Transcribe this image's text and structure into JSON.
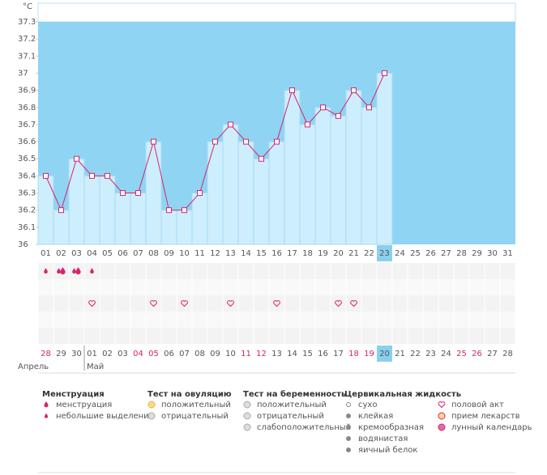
{
  "chart_data": {
    "type": "line",
    "y_label": "°C",
    "categories": [
      "01",
      "02",
      "03",
      "04",
      "05",
      "06",
      "07",
      "08",
      "09",
      "10",
      "11",
      "12",
      "13",
      "14",
      "15",
      "16",
      "17",
      "18",
      "19",
      "20",
      "21",
      "22",
      "23",
      "24",
      "25",
      "26",
      "27",
      "28",
      "29",
      "30",
      "31"
    ],
    "values": [
      36.4,
      36.2,
      36.5,
      36.4,
      36.4,
      36.3,
      36.3,
      36.6,
      36.2,
      36.2,
      36.3,
      36.6,
      36.7,
      36.6,
      36.5,
      36.6,
      36.9,
      36.7,
      36.8,
      36.75,
      36.9,
      36.8,
      37.0,
      null,
      null,
      null,
      null,
      null,
      null,
      null,
      null
    ],
    "ylim": [
      36,
      37.3
    ],
    "yticks": [
      36,
      36.1,
      36.2,
      36.3,
      36.4,
      36.5,
      36.6,
      36.7,
      36.8,
      36.9,
      37,
      37.1,
      37.2,
      37.3
    ],
    "color": "#d6246e",
    "bar_color": "#cdeefd",
    "background_color": "#8fd4f3",
    "today_index": 22,
    "heavy_flow_days": [
      2,
      3
    ],
    "light_flow_days": [
      1,
      4
    ],
    "intercourse_days": [
      4,
      8,
      10,
      13,
      16,
      20,
      21
    ],
    "cycle_dates": [
      "28",
      "29",
      "30",
      "01",
      "02",
      "03",
      "04",
      "05",
      "06",
      "07",
      "08",
      "09",
      "10",
      "11",
      "12",
      "13",
      "14",
      "15",
      "16",
      "17",
      "18",
      "19",
      "20",
      "21",
      "22",
      "23",
      "24",
      "25",
      "26",
      "27",
      "28"
    ],
    "weekend": [
      true,
      false,
      false,
      false,
      false,
      false,
      true,
      true,
      false,
      false,
      false,
      false,
      false,
      true,
      true,
      false,
      false,
      false,
      false,
      false,
      true,
      true,
      false,
      false,
      false,
      false,
      false,
      true,
      true,
      false,
      false
    ],
    "months": [
      {
        "label": "Апрель",
        "index": 0
      },
      {
        "label": "Май",
        "index": 3
      }
    ]
  },
  "legend": [
    {
      "title": "Менструация",
      "items": [
        "менструация",
        "небольшие выделения"
      ]
    },
    {
      "title": "Тест на овуляцию",
      "items": [
        "положительный",
        "отрицательный"
      ]
    },
    {
      "title": "Тест на беременность",
      "items": [
        "положительный",
        "отрицательный",
        "слабоположительный"
      ]
    },
    {
      "title": "Цервикальная жидкость",
      "items": [
        "сухо",
        "клейкая",
        "кремообразная",
        "водянистая",
        "яичный белок"
      ]
    },
    {
      "items": [
        "половой акт",
        "прием лекарств",
        "лунный календарь"
      ]
    }
  ]
}
